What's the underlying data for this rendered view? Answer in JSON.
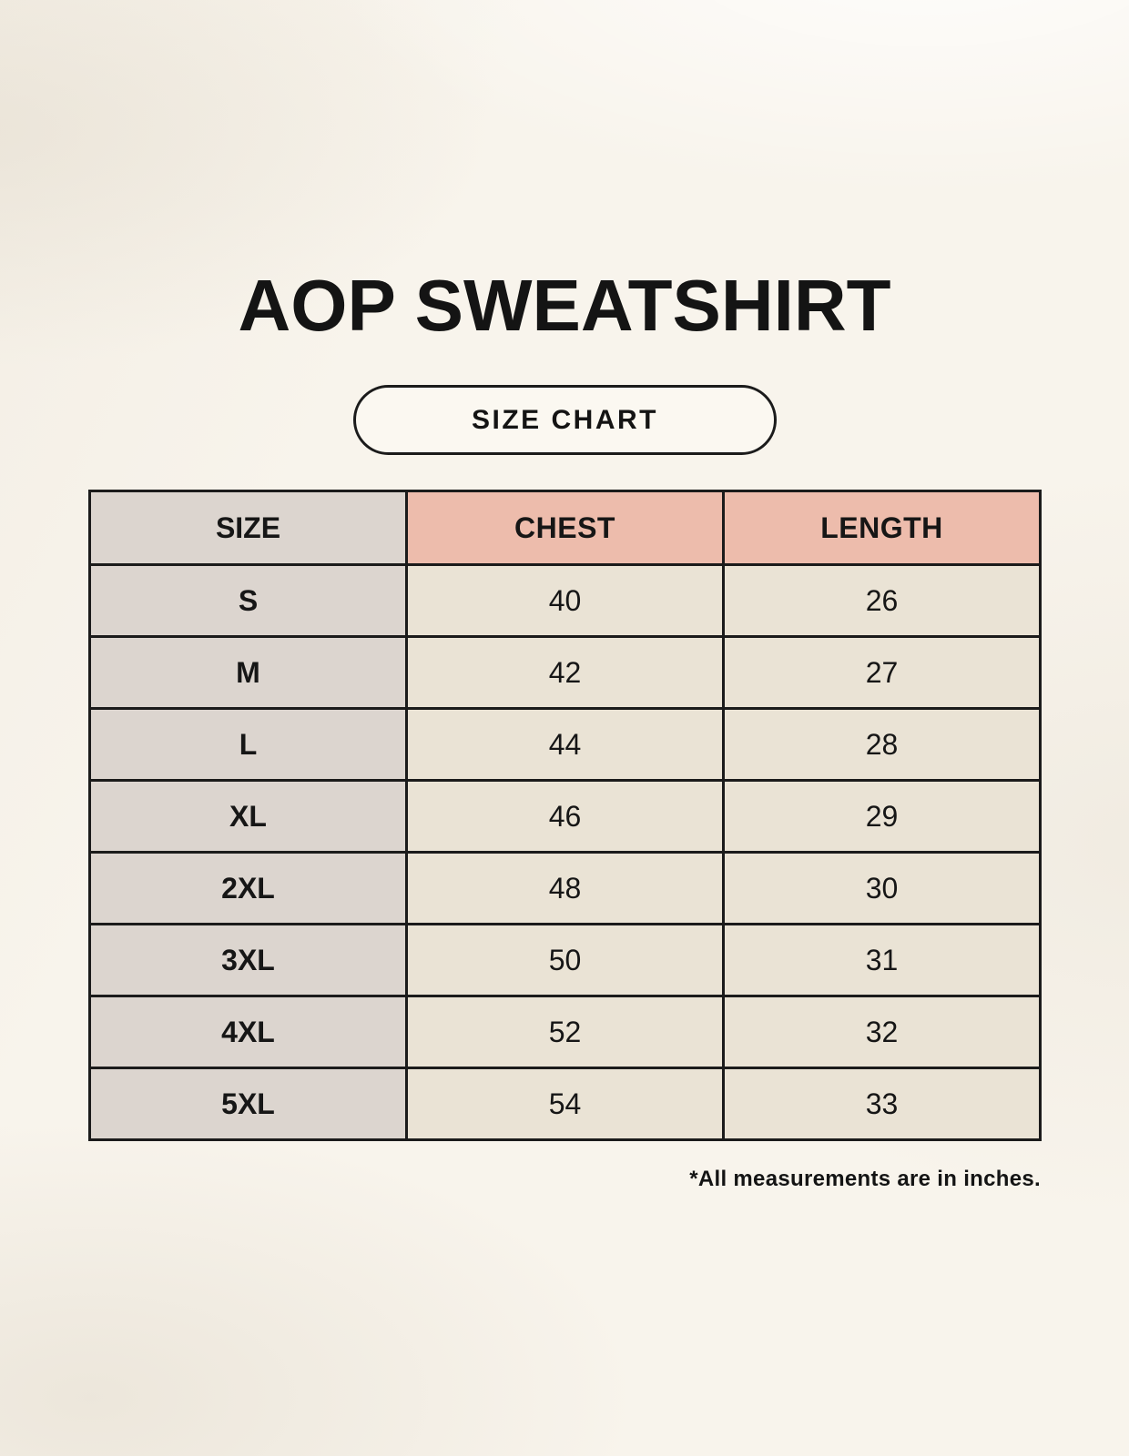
{
  "page": {
    "title": "AOP SWEATSHIRT",
    "size_chart_label": "SIZE CHART",
    "footnote": "*All measurements are in inches."
  },
  "colors": {
    "page_background": "#f8f4ec",
    "label_cell_background": "#dcd5cf",
    "measure_header_background": "#edbcac",
    "data_cell_background": "#eae3d5",
    "pill_background": "#fbf8f1",
    "border": "#1b1b1b",
    "text": "#141414"
  },
  "chart_data": {
    "type": "table",
    "title": "AOP SWEATSHIRT",
    "subtitle": "SIZE CHART",
    "columns": [
      "SIZE",
      "CHEST",
      "LENGTH"
    ],
    "rows": [
      {
        "size": "S",
        "chest": 40,
        "length": 26
      },
      {
        "size": "M",
        "chest": 42,
        "length": 27
      },
      {
        "size": "L",
        "chest": 44,
        "length": 28
      },
      {
        "size": "XL",
        "chest": 46,
        "length": 29
      },
      {
        "size": "2XL",
        "chest": 48,
        "length": 30
      },
      {
        "size": "3XL",
        "chest": 50,
        "length": 31
      },
      {
        "size": "4XL",
        "chest": 52,
        "length": 32
      },
      {
        "size": "5XL",
        "chest": 54,
        "length": 33
      }
    ],
    "footnote": "*All measurements are in inches.",
    "units": "inches"
  }
}
